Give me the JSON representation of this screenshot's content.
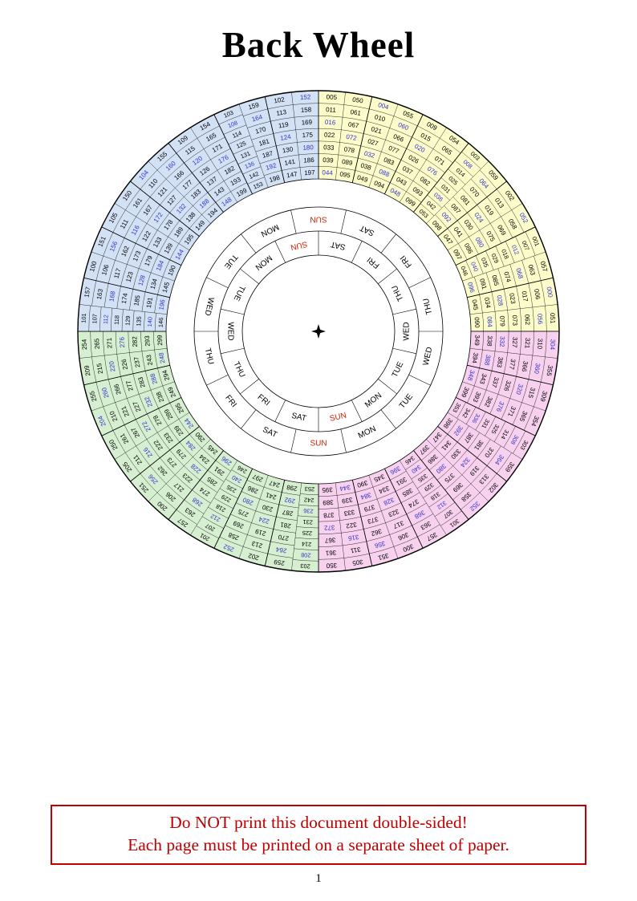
{
  "page": {
    "title": "Back Wheel",
    "page_number": "1",
    "warning": {
      "line1": "Do NOT print this document double-sided!",
      "line2": "Each page must be printed on a separate sheet of paper."
    }
  },
  "wheel": {
    "colors": {
      "century_fills": [
        "#fcfcca",
        "#d3e1f5",
        "#d7efd1",
        "#f7d1ee"
      ],
      "leap_year_text": "#3333cc",
      "sunday_text": "#cc2200",
      "line": "#000000"
    },
    "day_rings": {
      "outer_clockwise_from_top": [
        "SUN",
        "SAT",
        "FRI",
        "THU",
        "WED",
        "TUE",
        "MON",
        "SUN",
        "SAT",
        "FRI",
        "THU",
        "WED",
        "TUE",
        "MON"
      ],
      "inner_clockwise_from_top": [
        "SUN",
        "SAT",
        "FRI",
        "THU",
        "WED",
        "TUE",
        "MON",
        "SUN",
        "SAT",
        "FRI",
        "THU",
        "WED",
        "TUE",
        "MON"
      ]
    },
    "sectors_clockwise_from_top": [
      {
        "century": 0,
        "years": [
          "005",
          "011",
          "016",
          "022",
          "033",
          "039",
          "044",
          "050",
          "061",
          "067",
          "072",
          "078",
          "089",
          "095"
        ],
        "leap_years": [
          "016",
          "044",
          "072"
        ]
      },
      {
        "century": 0,
        "years": [
          "004",
          "010",
          "021",
          "027",
          "032",
          "038",
          "049",
          "055",
          "060",
          "066",
          "077",
          "083",
          "088",
          "094"
        ],
        "leap_years": [
          "004",
          "032",
          "060",
          "088"
        ]
      },
      {
        "century": 0,
        "years": [
          "009",
          "015",
          "020",
          "026",
          "037",
          "043",
          "048",
          "054",
          "065",
          "071",
          "076",
          "082",
          "093",
          "099"
        ],
        "leap_years": [
          "020",
          "048",
          "076"
        ]
      },
      {
        "century": 0,
        "years": [
          "003",
          "008",
          "014",
          "025",
          "031",
          "036",
          "042",
          "053",
          "059",
          "064",
          "070",
          "081",
          "087",
          "092",
          "098"
        ],
        "leap_years": [
          "008",
          "036",
          "064",
          "092"
        ]
      },
      {
        "century": 0,
        "years": [
          "002",
          "013",
          "019",
          "024",
          "030",
          "041",
          "047",
          "052",
          "058",
          "069",
          "075",
          "080",
          "086",
          "097"
        ],
        "leap_years": [
          "024",
          "052",
          "080"
        ]
      },
      {
        "century": 0,
        "years": [
          "001",
          "007",
          "012",
          "018",
          "029",
          "035",
          "040",
          "046",
          "057",
          "063",
          "068",
          "074",
          "085",
          "091",
          "096"
        ],
        "leap_years": [
          "012",
          "040",
          "068",
          "096"
        ]
      },
      {
        "century": 0,
        "years": [
          "000",
          "006",
          "017",
          "023",
          "028",
          "034",
          "045",
          "051",
          "056",
          "062",
          "073",
          "079",
          "084",
          "090"
        ],
        "leap_years": [
          "000",
          "028",
          "056",
          "084"
        ]
      },
      {
        "century": 3,
        "years": [
          "304",
          "310",
          "321",
          "327",
          "332",
          "338",
          "349",
          "355",
          "360",
          "366",
          "377",
          "383",
          "388",
          "394"
        ],
        "leap_years": [
          "304",
          "332",
          "360",
          "388"
        ]
      },
      {
        "century": 3,
        "years": [
          "309",
          "315",
          "320",
          "326",
          "337",
          "343",
          "348",
          "354",
          "365",
          "371",
          "376",
          "382",
          "393",
          "399"
        ],
        "leap_years": [
          "320",
          "348",
          "376"
        ]
      },
      {
        "century": 3,
        "years": [
          "303",
          "308",
          "314",
          "325",
          "331",
          "336",
          "342",
          "353",
          "359",
          "364",
          "370",
          "381",
          "387",
          "392",
          "398"
        ],
        "leap_years": [
          "308",
          "336",
          "364",
          "392"
        ]
      },
      {
        "century": 3,
        "years": [
          "302",
          "313",
          "319",
          "324",
          "330",
          "341",
          "347",
          "352",
          "358",
          "369",
          "375",
          "380",
          "386",
          "397"
        ],
        "leap_years": [
          "324",
          "352",
          "380"
        ]
      },
      {
        "century": 3,
        "years": [
          "301",
          "307",
          "312",
          "318",
          "329",
          "335",
          "340",
          "346",
          "357",
          "363",
          "368",
          "374",
          "385",
          "391",
          "396"
        ],
        "leap_years": [
          "312",
          "340",
          "368",
          "396"
        ]
      },
      {
        "century": 3,
        "years": [
          "300",
          "306",
          "317",
          "323",
          "328",
          "334",
          "345",
          "351",
          "356",
          "362",
          "373",
          "379",
          "384",
          "390"
        ],
        "leap_years": [
          "328",
          "356",
          "384"
        ]
      },
      {
        "century": 3,
        "years": [
          "305",
          "311",
          "316",
          "322",
          "333",
          "339",
          "344",
          "350",
          "361",
          "367",
          "372",
          "378",
          "389",
          "395"
        ],
        "leap_years": [
          "316",
          "344",
          "372"
        ]
      },
      {
        "century": 2,
        "years": [
          "203",
          "208",
          "214",
          "225",
          "231",
          "236",
          "242",
          "253",
          "259",
          "264",
          "270",
          "281",
          "287",
          "292",
          "298"
        ],
        "leap_years": [
          "208",
          "236",
          "264",
          "292"
        ]
      },
      {
        "century": 2,
        "years": [
          "202",
          "213",
          "219",
          "224",
          "230",
          "241",
          "247",
          "252",
          "258",
          "269",
          "275",
          "280",
          "286",
          "297"
        ],
        "leap_years": [
          "224",
          "252",
          "280"
        ]
      },
      {
        "century": 2,
        "years": [
          "201",
          "207",
          "212",
          "218",
          "229",
          "235",
          "240",
          "246",
          "257",
          "263",
          "268",
          "274",
          "285",
          "291",
          "296"
        ],
        "leap_years": [
          "212",
          "240",
          "268",
          "296"
        ]
      },
      {
        "century": 2,
        "years": [
          "200",
          "206",
          "217",
          "223",
          "228",
          "234",
          "245",
          "251",
          "256",
          "262",
          "273",
          "279",
          "284",
          "290"
        ],
        "leap_years": [
          "228",
          "256",
          "284"
        ]
      },
      {
        "century": 2,
        "years": [
          "205",
          "211",
          "216",
          "222",
          "233",
          "239",
          "244",
          "250",
          "261",
          "267",
          "272",
          "278",
          "289",
          "295"
        ],
        "leap_years": [
          "216",
          "244",
          "272"
        ]
      },
      {
        "century": 2,
        "years": [
          "204",
          "210",
          "221",
          "227",
          "232",
          "238",
          "249",
          "255",
          "260",
          "266",
          "277",
          "283",
          "288",
          "294"
        ],
        "leap_years": [
          "204",
          "232",
          "260",
          "288"
        ]
      },
      {
        "century": 2,
        "years": [
          "209",
          "215",
          "220",
          "226",
          "237",
          "243",
          "248",
          "254",
          "265",
          "271",
          "276",
          "282",
          "293",
          "299"
        ],
        "leap_years": [
          "220",
          "248",
          "276"
        ]
      },
      {
        "century": 1,
        "years": [
          "101",
          "107",
          "112",
          "118",
          "129",
          "135",
          "140",
          "146",
          "157",
          "163",
          "168",
          "174",
          "185",
          "191",
          "196"
        ],
        "leap_years": [
          "112",
          "140",
          "168",
          "196"
        ]
      },
      {
        "century": 1,
        "years": [
          "100",
          "106",
          "117",
          "123",
          "128",
          "134",
          "145",
          "151",
          "156",
          "162",
          "173",
          "179",
          "184",
          "190"
        ],
        "leap_years": [
          "128",
          "156",
          "184"
        ]
      },
      {
        "century": 1,
        "years": [
          "105",
          "111",
          "116",
          "122",
          "133",
          "139",
          "144",
          "150",
          "161",
          "167",
          "172",
          "178",
          "189",
          "195"
        ],
        "leap_years": [
          "116",
          "144",
          "172"
        ]
      },
      {
        "century": 1,
        "years": [
          "104",
          "110",
          "121",
          "127",
          "132",
          "138",
          "149",
          "155",
          "160",
          "166",
          "177",
          "183",
          "188",
          "194"
        ],
        "leap_years": [
          "104",
          "132",
          "160",
          "188"
        ]
      },
      {
        "century": 1,
        "years": [
          "109",
          "115",
          "120",
          "126",
          "137",
          "143",
          "148",
          "154",
          "165",
          "171",
          "176",
          "182",
          "193",
          "199"
        ],
        "leap_years": [
          "120",
          "148",
          "176"
        ]
      },
      {
        "century": 1,
        "years": [
          "103",
          "108",
          "114",
          "125",
          "131",
          "136",
          "142",
          "153",
          "159",
          "164",
          "170",
          "181",
          "187",
          "192",
          "198"
        ],
        "leap_years": [
          "108",
          "136",
          "164",
          "192"
        ]
      },
      {
        "century": 1,
        "years": [
          "102",
          "113",
          "119",
          "124",
          "130",
          "141",
          "147",
          "152",
          "158",
          "169",
          "175",
          "180",
          "186",
          "197"
        ],
        "leap_years": [
          "124",
          "152",
          "180"
        ]
      }
    ]
  }
}
